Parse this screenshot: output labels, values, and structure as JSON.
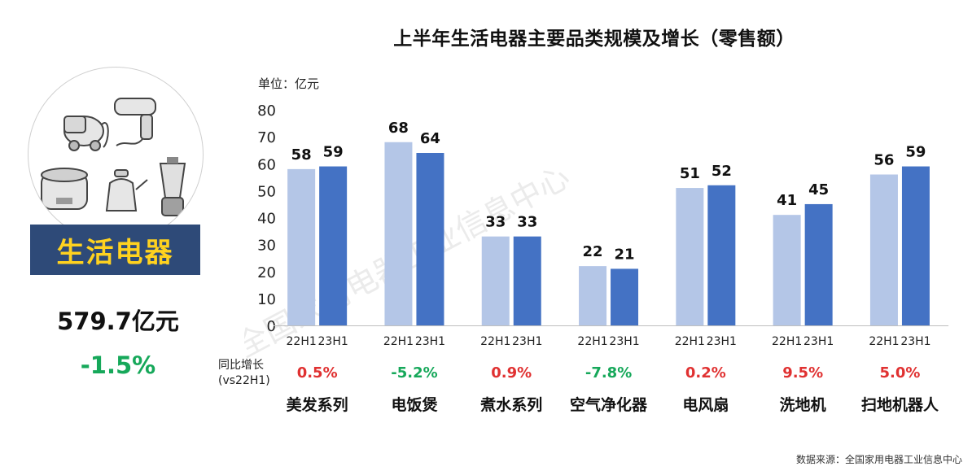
{
  "title": "上半年生活电器主要品类规模及增长（零售额）",
  "unit_label": "单位：亿元",
  "left_panel": {
    "category": "生活电器",
    "total": "579.7亿元",
    "growth": "-1.5%",
    "growth_color": "#16a85a",
    "illustration_icons": [
      "vacuum-cleaner-icon",
      "hair-dryer-icon",
      "rice-cooker-icon",
      "kettle-icon",
      "blender-icon"
    ]
  },
  "yoy_label_line1": "同比增长",
  "yoy_label_line2": "(vs22H1)",
  "source": "数据来源：全国家用电器工业信息中心",
  "watermark_text": "全国家用电器工业信息中心",
  "colors": {
    "series_22": "#b4c6e7",
    "series_23": "#4472c4",
    "positive": "#e03131",
    "negative": "#16a85a"
  },
  "chart_data": {
    "type": "bar",
    "title": "上半年生活电器主要品类规模及增长（零售额）",
    "ylabel": "单位：亿元",
    "ylim": [
      0,
      80
    ],
    "yticks": [
      0,
      10,
      20,
      30,
      40,
      50,
      60,
      70,
      80
    ],
    "grid": false,
    "legend": "none",
    "categories": [
      "美发系列",
      "电饭煲",
      "煮水系列",
      "空气净化器",
      "电风扇",
      "洗地机",
      "扫地机器人"
    ],
    "series": [
      {
        "name": "22H1",
        "values": [
          58,
          68,
          33,
          22,
          51,
          41,
          56
        ]
      },
      {
        "name": "23H1",
        "values": [
          59,
          64,
          33,
          21,
          52,
          45,
          59
        ]
      }
    ],
    "growth": [
      "0.5%",
      "-5.2%",
      "0.9%",
      "-7.8%",
      "0.2%",
      "9.5%",
      "5.0%"
    ]
  }
}
